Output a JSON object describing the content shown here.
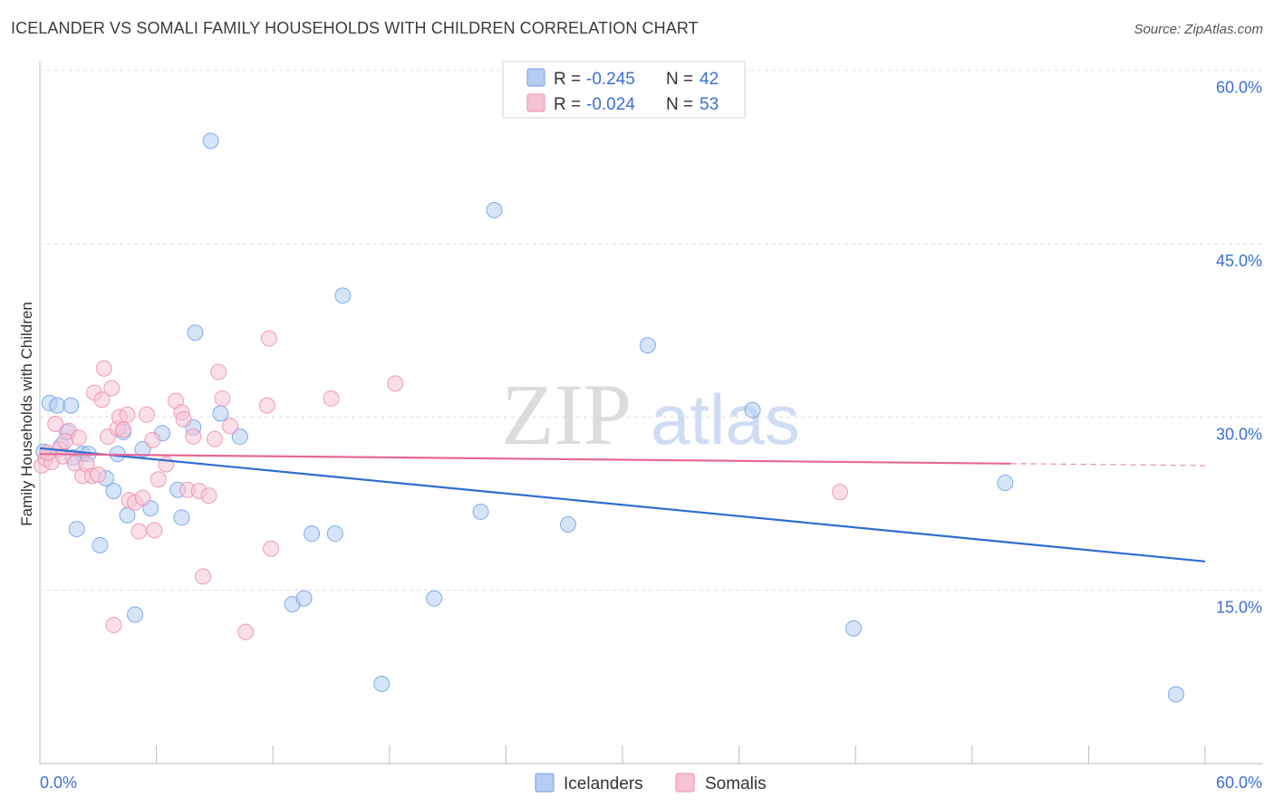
{
  "title": "ICELANDER VS SOMALI FAMILY HOUSEHOLDS WITH CHILDREN CORRELATION CHART",
  "source": "Source: ZipAtlas.com",
  "watermark": {
    "zip": "ZIP",
    "atlas": "atlas"
  },
  "chart_data": {
    "type": "scatter",
    "ylabel": "Family Households with Children",
    "xlim": [
      0,
      60
    ],
    "ylim": [
      0,
      62
    ],
    "y_ticks": [
      {
        "value": 15,
        "label": "15.0%"
      },
      {
        "value": 30,
        "label": "30.0%"
      },
      {
        "value": 45,
        "label": "45.0%"
      },
      {
        "value": 60,
        "label": "60.0%"
      }
    ],
    "x_tick_labels": [
      {
        "value": 0,
        "label": "0.0%"
      },
      {
        "value": 60,
        "label": "60.0%"
      }
    ],
    "grid": "horizontal-dashed",
    "legend_position": "top-center",
    "series": [
      {
        "name": "Icelanders",
        "color": "#6f9fe6",
        "fill": "#b5cdf3",
        "stats": {
          "r_label": "R =",
          "r": "-0.245",
          "n_label": "N =",
          "n": "42"
        },
        "trend": {
          "x0": 0,
          "y0": 27.3,
          "x1": 60,
          "y1": 17.5,
          "dashed_from": null
        },
        "points": [
          [
            0.2,
            27.0
          ],
          [
            0.5,
            31.2
          ],
          [
            0.9,
            31.0
          ],
          [
            1.1,
            27.5
          ],
          [
            1.4,
            28.7
          ],
          [
            1.6,
            31.0
          ],
          [
            1.7,
            26.5
          ],
          [
            1.9,
            20.3
          ],
          [
            2.2,
            26.8
          ],
          [
            2.5,
            26.8
          ],
          [
            3.1,
            18.9
          ],
          [
            3.4,
            24.7
          ],
          [
            3.8,
            23.6
          ],
          [
            4.0,
            26.8
          ],
          [
            4.3,
            28.7
          ],
          [
            4.5,
            21.5
          ],
          [
            4.9,
            12.9
          ],
          [
            5.3,
            27.2
          ],
          [
            5.7,
            22.1
          ],
          [
            6.3,
            28.6
          ],
          [
            7.1,
            23.7
          ],
          [
            7.3,
            21.3
          ],
          [
            7.9,
            29.1
          ],
          [
            8.0,
            37.3
          ],
          [
            8.8,
            53.9
          ],
          [
            9.3,
            30.3
          ],
          [
            10.3,
            28.3
          ],
          [
            13.0,
            13.8
          ],
          [
            13.6,
            14.3
          ],
          [
            14.0,
            19.9
          ],
          [
            15.2,
            19.9
          ],
          [
            15.6,
            40.5
          ],
          [
            17.6,
            6.9
          ],
          [
            20.3,
            14.3
          ],
          [
            22.7,
            21.8
          ],
          [
            23.4,
            47.9
          ],
          [
            27.2,
            20.7
          ],
          [
            31.3,
            36.2
          ],
          [
            36.7,
            30.6
          ],
          [
            41.9,
            11.7
          ],
          [
            49.7,
            24.3
          ],
          [
            58.5,
            6.0
          ]
        ]
      },
      {
        "name": "Somalis",
        "color": "#ec8fb0",
        "fill": "#f6c2d5",
        "stats": {
          "r_label": "R =",
          "r": "-0.024",
          "n_label": "N =",
          "n": "53"
        },
        "trend": {
          "x0": 0,
          "y0": 26.8,
          "x1": 60,
          "y1": 25.8,
          "dashed_from": 50.0
        },
        "points": [
          [
            0.1,
            25.8
          ],
          [
            0.3,
            26.4
          ],
          [
            0.6,
            26.1
          ],
          [
            0.8,
            29.4
          ],
          [
            1.0,
            27.2
          ],
          [
            1.2,
            26.6
          ],
          [
            1.5,
            28.8
          ],
          [
            1.8,
            26.0
          ],
          [
            2.0,
            28.2
          ],
          [
            2.2,
            24.9
          ],
          [
            2.4,
            25.9
          ],
          [
            2.7,
            24.9
          ],
          [
            2.8,
            32.1
          ],
          [
            3.0,
            25.0
          ],
          [
            3.2,
            31.5
          ],
          [
            3.3,
            34.2
          ],
          [
            3.5,
            28.3
          ],
          [
            3.7,
            32.5
          ],
          [
            3.8,
            12.0
          ],
          [
            4.0,
            29.0
          ],
          [
            4.1,
            30.0
          ],
          [
            4.3,
            28.9
          ],
          [
            4.5,
            30.2
          ],
          [
            4.6,
            22.8
          ],
          [
            4.9,
            22.6
          ],
          [
            5.1,
            20.1
          ],
          [
            5.3,
            23.0
          ],
          [
            5.5,
            30.2
          ],
          [
            5.8,
            28.0
          ],
          [
            5.9,
            20.2
          ],
          [
            6.1,
            24.6
          ],
          [
            6.5,
            25.9
          ],
          [
            7.0,
            31.4
          ],
          [
            7.3,
            30.4
          ],
          [
            7.4,
            29.8
          ],
          [
            7.6,
            23.7
          ],
          [
            7.9,
            28.3
          ],
          [
            8.2,
            23.6
          ],
          [
            8.4,
            16.2
          ],
          [
            8.7,
            23.2
          ],
          [
            9.0,
            28.1
          ],
          [
            9.2,
            33.9
          ],
          [
            9.4,
            31.6
          ],
          [
            9.8,
            29.2
          ],
          [
            10.6,
            11.4
          ],
          [
            11.7,
            31.0
          ],
          [
            11.8,
            36.8
          ],
          [
            11.9,
            18.6
          ],
          [
            15.0,
            31.6
          ],
          [
            18.3,
            32.9
          ],
          [
            41.2,
            23.5
          ],
          [
            0.4,
            26.9
          ],
          [
            1.3,
            27.9
          ]
        ]
      }
    ]
  }
}
